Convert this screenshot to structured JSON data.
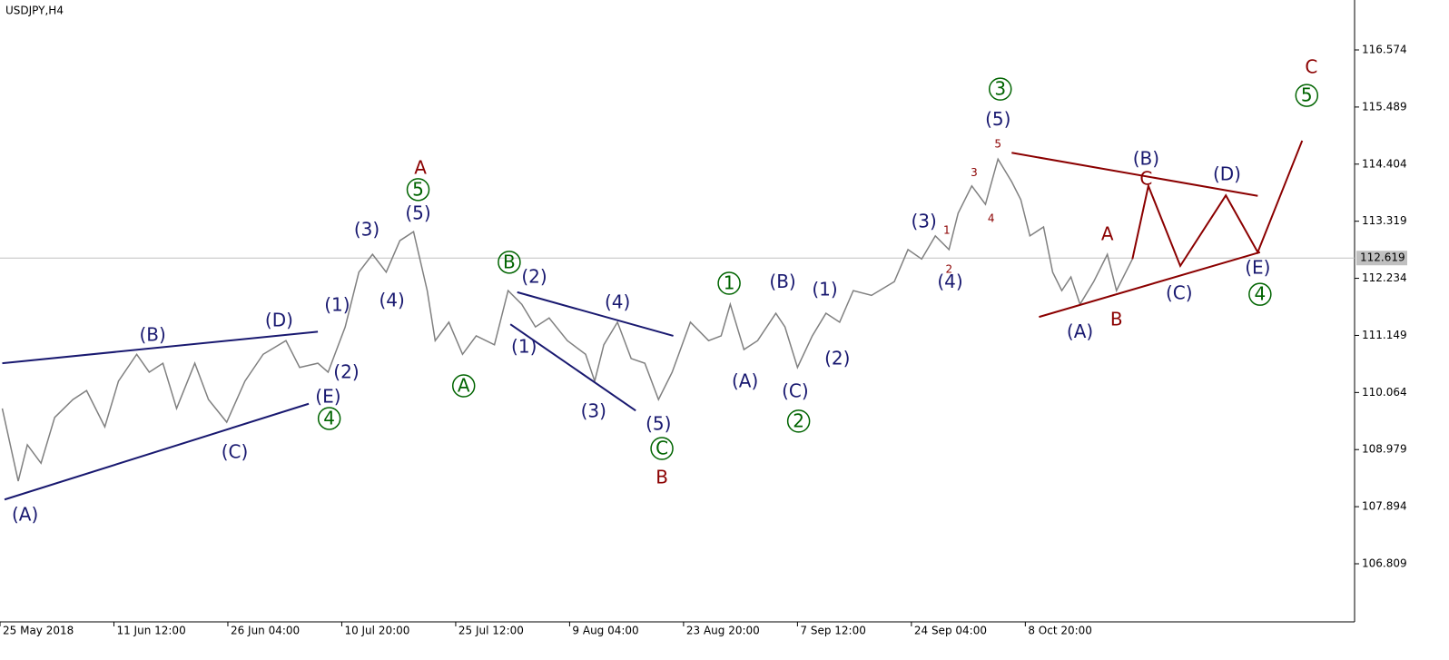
{
  "chart_data": {
    "type": "line",
    "title": "USDJPY,H4",
    "xlim": [
      0,
      118.9
    ],
    "ylim": [
      105.705,
      117.523
    ],
    "xticks": [
      {
        "value": 0,
        "label": "25 May 2018"
      },
      {
        "value": 10,
        "label": "11 Jun 12:00"
      },
      {
        "value": 20,
        "label": "26 Jun 04:00"
      },
      {
        "value": 30,
        "label": "10 Jul 20:00"
      },
      {
        "value": 40,
        "label": "25 Jul 12:00"
      },
      {
        "value": 50,
        "label": "9 Aug 04:00"
      },
      {
        "value": 60,
        "label": "23 Aug 20:00"
      },
      {
        "value": 70,
        "label": "7 Sep 12:00"
      },
      {
        "value": 80,
        "label": "24 Sep 04:00"
      },
      {
        "value": 90,
        "label": "8 Oct 20:00"
      }
    ],
    "yticks": [
      106.809,
      107.894,
      108.979,
      110.064,
      111.149,
      112.234,
      113.319,
      114.404,
      115.489,
      116.574
    ],
    "current_price": 112.619,
    "series": [
      {
        "name": "USDJPY",
        "color": "#808080",
        "x": [
          0.2,
          1.6,
          2.4,
          3.6,
          4.8,
          6.4,
          7.6,
          9.2,
          10.4,
          12,
          13.1,
          14.3,
          15.5,
          17.1,
          18.3,
          19.9,
          21.5,
          23.1,
          25.1,
          26.3,
          27.9,
          28.8,
          30.3,
          31.5,
          32.7,
          33.9,
          35.1,
          36.3,
          37.5,
          38.2,
          39.4,
          40.6,
          41.8,
          43.4,
          44.6,
          45.8,
          47,
          48.2,
          49.8,
          51.4,
          52.2,
          53,
          54.2,
          55.4,
          56.6,
          57.8,
          59,
          60.6,
          62.2,
          63.3,
          64.1,
          65.3,
          66.5,
          68.1,
          68.9,
          70,
          71.3,
          72.5,
          73.7,
          74.9,
          76.5,
          78.5,
          79.7,
          80.9,
          82.1,
          83.3,
          84.1,
          85.3,
          86.5,
          87.6,
          88.8,
          89.6,
          90.4,
          91.6,
          92.4,
          93.2,
          94,
          94.8,
          96,
          97.2,
          98,
          99.4
        ],
        "values": [
          109.76,
          108.38,
          109.07,
          108.72,
          109.59,
          109.93,
          110.1,
          109.41,
          110.28,
          110.79,
          110.45,
          110.62,
          109.76,
          110.62,
          109.93,
          109.5,
          110.28,
          110.79,
          111.05,
          110.54,
          110.62,
          110.45,
          111.31,
          112.35,
          112.69,
          112.35,
          112.95,
          113.12,
          112.0,
          111.05,
          111.4,
          110.79,
          111.14,
          110.97,
          112.0,
          111.74,
          111.31,
          111.48,
          111.05,
          110.79,
          110.28,
          110.97,
          111.4,
          110.71,
          110.62,
          109.93,
          110.45,
          111.4,
          111.05,
          111.14,
          111.74,
          110.88,
          111.05,
          111.57,
          111.31,
          110.54,
          111.14,
          111.57,
          111.4,
          112.0,
          111.91,
          112.17,
          112.78,
          112.6,
          113.04,
          112.78,
          113.47,
          113.99,
          113.64,
          114.5,
          114.07,
          113.73,
          113.04,
          113.21,
          112.35,
          112.0,
          112.26,
          111.74,
          112.17,
          112.69,
          112.0,
          112.6
        ]
      }
    ],
    "lines": [
      {
        "color": "#191970",
        "x": [
          0.2,
          27.9
        ],
        "y": [
          110.62,
          111.22
        ]
      },
      {
        "color": "#191970",
        "x": [
          0.4,
          27.1
        ],
        "y": [
          108.03,
          109.85
        ]
      },
      {
        "color": "#191970",
        "x": [
          45.4,
          59.1
        ],
        "y": [
          111.97,
          111.14
        ]
      },
      {
        "color": "#191970",
        "x": [
          44.8,
          55.8
        ],
        "y": [
          111.36,
          109.72
        ]
      },
      {
        "color": "#8b0000",
        "x": [
          88.8,
          110.4
        ],
        "y": [
          114.62,
          113.8
        ]
      },
      {
        "color": "#8b0000",
        "x": [
          91.2,
          110.6
        ],
        "y": [
          111.5,
          112.73
        ]
      },
      {
        "color": "#8b0000",
        "x": [
          99.4,
          100.8,
          103.6,
          107.6,
          110.4,
          114.3
        ],
        "y": [
          112.6,
          113.99,
          112.47,
          113.81,
          112.73,
          114.85
        ]
      }
    ],
    "annotations": [
      {
        "text": "(A)",
        "x": 2.2,
        "y": 107.74,
        "color": "#191970"
      },
      {
        "text": "(B)",
        "x": 13.4,
        "y": 111.16,
        "color": "#191970"
      },
      {
        "text": "(C)",
        "x": 20.6,
        "y": 108.93,
        "color": "#191970"
      },
      {
        "text": "(D)",
        "x": 24.5,
        "y": 111.43,
        "color": "#191970"
      },
      {
        "text": "(E)",
        "x": 28.8,
        "y": 109.98,
        "color": "#191970"
      },
      {
        "text": "4",
        "x": 28.9,
        "y": 109.57,
        "color": "#006400",
        "circled": true
      },
      {
        "text": "(1)",
        "x": 29.6,
        "y": 111.73,
        "color": "#191970"
      },
      {
        "text": "(2)",
        "x": 30.4,
        "y": 110.45,
        "color": "#191970"
      },
      {
        "text": "(3)",
        "x": 32.2,
        "y": 113.16,
        "color": "#191970"
      },
      {
        "text": "(4)",
        "x": 34.4,
        "y": 111.81,
        "color": "#191970"
      },
      {
        "text": "(5)",
        "x": 36.7,
        "y": 113.47,
        "color": "#191970"
      },
      {
        "text": "5",
        "x": 36.7,
        "y": 113.92,
        "color": "#006400",
        "circled": true
      },
      {
        "text": "A",
        "x": 36.9,
        "y": 114.33,
        "color": "#8b0000"
      },
      {
        "text": "A",
        "x": 40.7,
        "y": 110.19,
        "color": "#006400",
        "circled": true
      },
      {
        "text": "B",
        "x": 44.7,
        "y": 112.54,
        "color": "#006400",
        "circled": true
      },
      {
        "text": "(2)",
        "x": 46.9,
        "y": 112.26,
        "color": "#191970"
      },
      {
        "text": "(1)",
        "x": 46,
        "y": 110.93,
        "color": "#191970"
      },
      {
        "text": "(4)",
        "x": 54.2,
        "y": 111.78,
        "color": "#191970"
      },
      {
        "text": "(3)",
        "x": 52.1,
        "y": 109.71,
        "color": "#191970"
      },
      {
        "text": "(5)",
        "x": 57.8,
        "y": 109.47,
        "color": "#191970"
      },
      {
        "text": "C",
        "x": 58.1,
        "y": 109.0,
        "color": "#006400",
        "circled": true
      },
      {
        "text": "B",
        "x": 58.1,
        "y": 108.45,
        "color": "#8b0000"
      },
      {
        "text": "1",
        "x": 64,
        "y": 112.14,
        "color": "#006400",
        "circled": true
      },
      {
        "text": "(A)",
        "x": 65.4,
        "y": 110.28,
        "color": "#191970"
      },
      {
        "text": "(B)",
        "x": 68.7,
        "y": 112.17,
        "color": "#191970"
      },
      {
        "text": "(C)",
        "x": 69.8,
        "y": 110.09,
        "color": "#191970"
      },
      {
        "text": "2",
        "x": 70.1,
        "y": 109.52,
        "color": "#006400",
        "circled": true
      },
      {
        "text": "(1)",
        "x": 72.4,
        "y": 112.02,
        "color": "#191970"
      },
      {
        "text": "(2)",
        "x": 73.5,
        "y": 110.71,
        "color": "#191970"
      },
      {
        "text": "(3)",
        "x": 81.1,
        "y": 113.31,
        "color": "#191970"
      },
      {
        "text": "(4)",
        "x": 83.4,
        "y": 112.17,
        "color": "#191970"
      },
      {
        "text": "1",
        "x": 83.1,
        "y": 113.16,
        "color": "#8b0000",
        "small": true
      },
      {
        "text": "2",
        "x": 83.3,
        "y": 112.42,
        "color": "#8b0000",
        "small": true
      },
      {
        "text": "3",
        "x": 85.5,
        "y": 114.25,
        "color": "#8b0000",
        "small": true
      },
      {
        "text": "4",
        "x": 87,
        "y": 113.38,
        "color": "#8b0000",
        "small": true
      },
      {
        "text": "5",
        "x": 87.6,
        "y": 114.8,
        "color": "#8b0000",
        "small": true
      },
      {
        "text": "3",
        "x": 87.8,
        "y": 115.83,
        "color": "#006400",
        "circled": true
      },
      {
        "text": "(5)",
        "x": 87.6,
        "y": 115.25,
        "color": "#191970"
      },
      {
        "text": "(A)",
        "x": 94.8,
        "y": 111.22,
        "color": "#191970"
      },
      {
        "text": "B",
        "x": 98,
        "y": 111.45,
        "color": "#8b0000"
      },
      {
        "text": "A",
        "x": 97.2,
        "y": 113.07,
        "color": "#8b0000"
      },
      {
        "text": "(B)",
        "x": 100.6,
        "y": 114.5,
        "color": "#191970"
      },
      {
        "text": "C",
        "x": 100.6,
        "y": 114.12,
        "color": "#8b0000"
      },
      {
        "text": "(C)",
        "x": 103.5,
        "y": 111.95,
        "color": "#191970"
      },
      {
        "text": "(D)",
        "x": 107.7,
        "y": 114.21,
        "color": "#191970"
      },
      {
        "text": "(E)",
        "x": 110.4,
        "y": 112.43,
        "color": "#191970"
      },
      {
        "text": "4",
        "x": 110.6,
        "y": 111.93,
        "color": "#006400",
        "circled": true
      },
      {
        "text": "C",
        "x": 115.1,
        "y": 116.25,
        "color": "#8b0000"
      },
      {
        "text": "5",
        "x": 114.7,
        "y": 115.71,
        "color": "#006400",
        "circled": true
      }
    ]
  }
}
